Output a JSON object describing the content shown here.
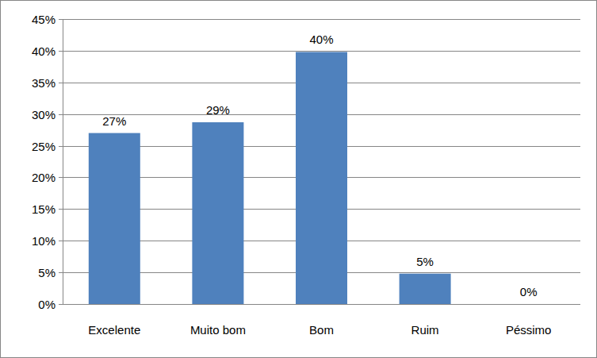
{
  "chart_data": {
    "type": "bar",
    "categories": [
      "Excelente",
      "Muito bom",
      "Bom",
      "Ruim",
      "Péssimo"
    ],
    "values": [
      27,
      28.7,
      39.8,
      4.8,
      0
    ],
    "value_labels": [
      "27%",
      "29%",
      "40%",
      "5%",
      "0%"
    ],
    "data_labels": true,
    "color": "#4f81bd",
    "ylim": [
      0,
      45
    ],
    "yticks": [
      {
        "value": 0,
        "label": "0%"
      },
      {
        "value": 5,
        "label": "5%"
      },
      {
        "value": 10,
        "label": "10%"
      },
      {
        "value": 15,
        "label": "15%"
      },
      {
        "value": 20,
        "label": "20%"
      },
      {
        "value": 25,
        "label": "25%"
      },
      {
        "value": 30,
        "label": "30%"
      },
      {
        "value": 35,
        "label": "35%"
      },
      {
        "value": 40,
        "label": "40%"
      },
      {
        "value": 45,
        "label": "45%"
      }
    ],
    "grid": true
  }
}
